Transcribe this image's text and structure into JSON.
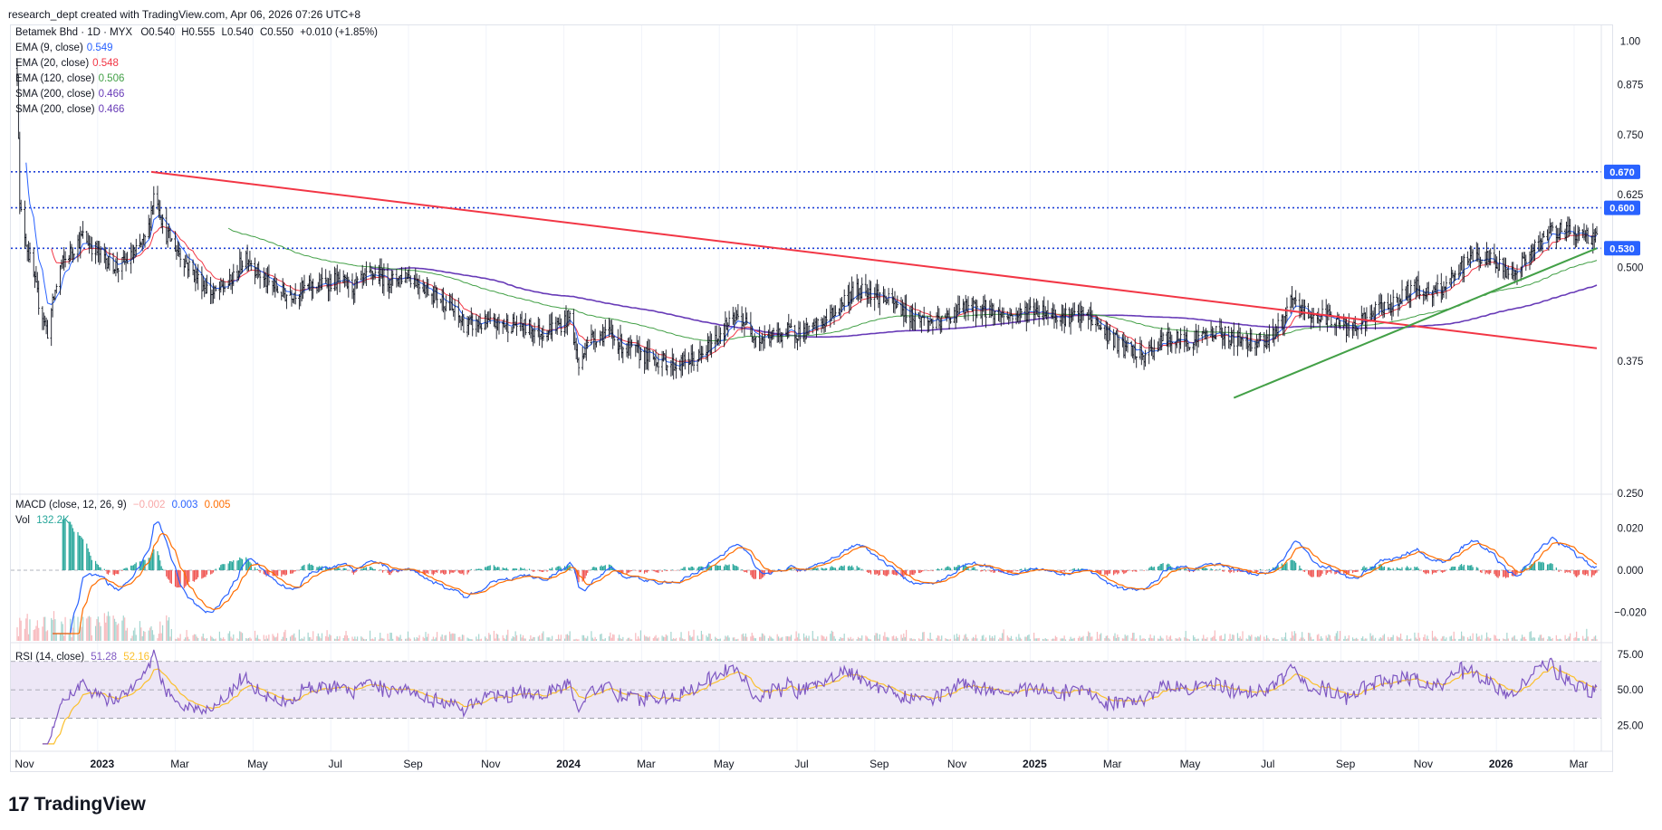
{
  "header": {
    "caption": "research_dept created with TradingView.com, Apr 06, 2026 07:26 UTC+8"
  },
  "symbol_line": {
    "name": "Betamek Bhd · 1D · MYX",
    "open": "O0.540",
    "high": "H0.555",
    "low": "L0.540",
    "close": "C0.550",
    "change": "+0.010 (+1.85%)"
  },
  "overlays": [
    {
      "label": "EMA (9, close)",
      "value": "0.549",
      "color": "#2962ff"
    },
    {
      "label": "EMA (20, close)",
      "value": "0.548",
      "color": "#f23645"
    },
    {
      "label": "EMA (120, close)",
      "value": "0.506",
      "color": "#43a047"
    },
    {
      "label": "SMA (200, close)",
      "value": "0.466",
      "color": "#673ab7"
    },
    {
      "label": "SMA (200, close)",
      "value": "0.466",
      "color": "#673ab7"
    }
  ],
  "macd_legend": {
    "label": "MACD (close, 12, 26, 9)",
    "hist": "−0.002",
    "macd": "0.003",
    "signal": "0.005"
  },
  "vol_legend": {
    "label": "Vol",
    "value": "132.2K"
  },
  "rsi_legend": {
    "label": "RSI (14, close)",
    "rsi": "51.28",
    "ma": "52.16"
  },
  "price_axis_ticks": [
    "1.00",
    "0.875",
    "0.750",
    "0.625",
    "0.500",
    "0.375",
    "0.250"
  ],
  "price_tags": [
    {
      "value": 0.67,
      "text": "0.670"
    },
    {
      "value": 0.6,
      "text": "0.600"
    },
    {
      "value": 0.53,
      "text": "0.530"
    }
  ],
  "macd_axis_ticks": [
    "0.020",
    "0.000",
    "−0.020"
  ],
  "rsi_axis_ticks": [
    "75.00",
    "50.00",
    "25.00"
  ],
  "time_axis": [
    "Nov",
    "2023",
    "Mar",
    "May",
    "Jul",
    "Sep",
    "Nov",
    "2024",
    "Mar",
    "May",
    "Jul",
    "Sep",
    "Nov",
    "2025",
    "Mar",
    "May",
    "Jul",
    "Sep",
    "Nov",
    "2026",
    "Mar"
  ],
  "colors": {
    "bars": "#131722",
    "ema9": "#2962ff",
    "ema20": "#f23645",
    "ema120": "#43a047",
    "sma200": "#673ab7",
    "resistance": "#f23645",
    "support": "#43a047",
    "level": "#1e3fd6",
    "macd": "#2962ff",
    "signal": "#ff6d00",
    "rsi": "#7e57c2",
    "rsi_ma": "#fbc02d",
    "rsi_band": "#ede7f6"
  },
  "brand": "TradingView",
  "chart_data": {
    "type": "ohlc",
    "interval": "1D",
    "y_scale": "log",
    "ylim": [
      0.25,
      1.05
    ],
    "start": "2022-11-01",
    "end": "2026-04-03",
    "price_path": [
      [
        "2022-11-01",
        0.92
      ],
      [
        "2022-11-03",
        0.6
      ],
      [
        "2022-11-10",
        0.52
      ],
      [
        "2022-11-18",
        0.45
      ],
      [
        "2022-11-25",
        0.41
      ],
      [
        "2022-12-05",
        0.5
      ],
      [
        "2022-12-15",
        0.53
      ],
      [
        "2022-12-23",
        0.55
      ],
      [
        "2023-01-05",
        0.52
      ],
      [
        "2023-01-20",
        0.5
      ],
      [
        "2023-02-02",
        0.52
      ],
      [
        "2023-02-12",
        0.55
      ],
      [
        "2023-02-18",
        0.64
      ],
      [
        "2023-02-25",
        0.56
      ],
      [
        "2023-03-10",
        0.52
      ],
      [
        "2023-03-25",
        0.48
      ],
      [
        "2023-04-05",
        0.46
      ],
      [
        "2023-04-20",
        0.48
      ],
      [
        "2023-05-01",
        0.52
      ],
      [
        "2023-05-15",
        0.48
      ],
      [
        "2023-06-01",
        0.46
      ],
      [
        "2023-06-20",
        0.47
      ],
      [
        "2023-07-10",
        0.48
      ],
      [
        "2023-07-25",
        0.47
      ],
      [
        "2023-08-10",
        0.49
      ],
      [
        "2023-08-25",
        0.48
      ],
      [
        "2023-09-05",
        0.49
      ],
      [
        "2023-09-20",
        0.47
      ],
      [
        "2023-10-05",
        0.45
      ],
      [
        "2023-10-20",
        0.42
      ],
      [
        "2023-11-10",
        0.42
      ],
      [
        "2023-11-30",
        0.42
      ],
      [
        "2023-12-20",
        0.41
      ],
      [
        "2024-01-05",
        0.42
      ],
      [
        "2024-01-12",
        0.43
      ],
      [
        "2024-01-20",
        0.36
      ],
      [
        "2024-01-25",
        0.4
      ],
      [
        "2024-02-10",
        0.41
      ],
      [
        "2024-02-25",
        0.39
      ],
      [
        "2024-03-15",
        0.38
      ],
      [
        "2024-04-05",
        0.37
      ],
      [
        "2024-04-25",
        0.38
      ],
      [
        "2024-05-10",
        0.41
      ],
      [
        "2024-05-25",
        0.43
      ],
      [
        "2024-06-10",
        0.4
      ],
      [
        "2024-07-01",
        0.41
      ],
      [
        "2024-07-20",
        0.41
      ],
      [
        "2024-08-05",
        0.43
      ],
      [
        "2024-08-20",
        0.46
      ],
      [
        "2024-09-01",
        0.47
      ],
      [
        "2024-09-20",
        0.45
      ],
      [
        "2024-10-10",
        0.43
      ],
      [
        "2024-10-30",
        0.42
      ],
      [
        "2024-11-15",
        0.44
      ],
      [
        "2024-12-05",
        0.44
      ],
      [
        "2024-12-25",
        0.43
      ],
      [
        "2025-01-15",
        0.44
      ],
      [
        "2025-02-05",
        0.43
      ],
      [
        "2025-02-25",
        0.43
      ],
      [
        "2025-03-10",
        0.41
      ],
      [
        "2025-03-25",
        0.39
      ],
      [
        "2025-04-10",
        0.38
      ],
      [
        "2025-04-25",
        0.4
      ],
      [
        "2025-05-15",
        0.4
      ],
      [
        "2025-06-05",
        0.41
      ],
      [
        "2025-06-25",
        0.4
      ],
      [
        "2025-07-15",
        0.4
      ],
      [
        "2025-07-28",
        0.42
      ],
      [
        "2025-08-05",
        0.45
      ],
      [
        "2025-08-20",
        0.43
      ],
      [
        "2025-09-05",
        0.43
      ],
      [
        "2025-09-20",
        0.41
      ],
      [
        "2025-10-05",
        0.43
      ],
      [
        "2025-10-25",
        0.45
      ],
      [
        "2025-11-10",
        0.47
      ],
      [
        "2025-11-25",
        0.46
      ],
      [
        "2025-12-10",
        0.48
      ],
      [
        "2025-12-25",
        0.52
      ],
      [
        "2026-01-10",
        0.51
      ],
      [
        "2026-01-25",
        0.49
      ],
      [
        "2026-02-10",
        0.52
      ],
      [
        "2026-02-25",
        0.56
      ],
      [
        "2026-03-10",
        0.56
      ],
      [
        "2026-03-25",
        0.55
      ],
      [
        "2026-04-03",
        0.55
      ]
    ],
    "horizontal_levels": [
      0.67,
      0.6,
      0.53
    ],
    "trendlines": [
      {
        "name": "resistance",
        "from": [
          "2023-02-15",
          0.67
        ],
        "to": [
          "2026-04-03",
          0.39
        ]
      },
      {
        "name": "support",
        "from": [
          "2025-06-20",
          0.335
        ],
        "to": [
          "2026-04-03",
          0.53
        ]
      }
    ],
    "macd_ylim": [
      -0.03,
      0.03
    ],
    "rsi_ylim": [
      10,
      80
    ],
    "rsi_bands": [
      30,
      70
    ]
  }
}
